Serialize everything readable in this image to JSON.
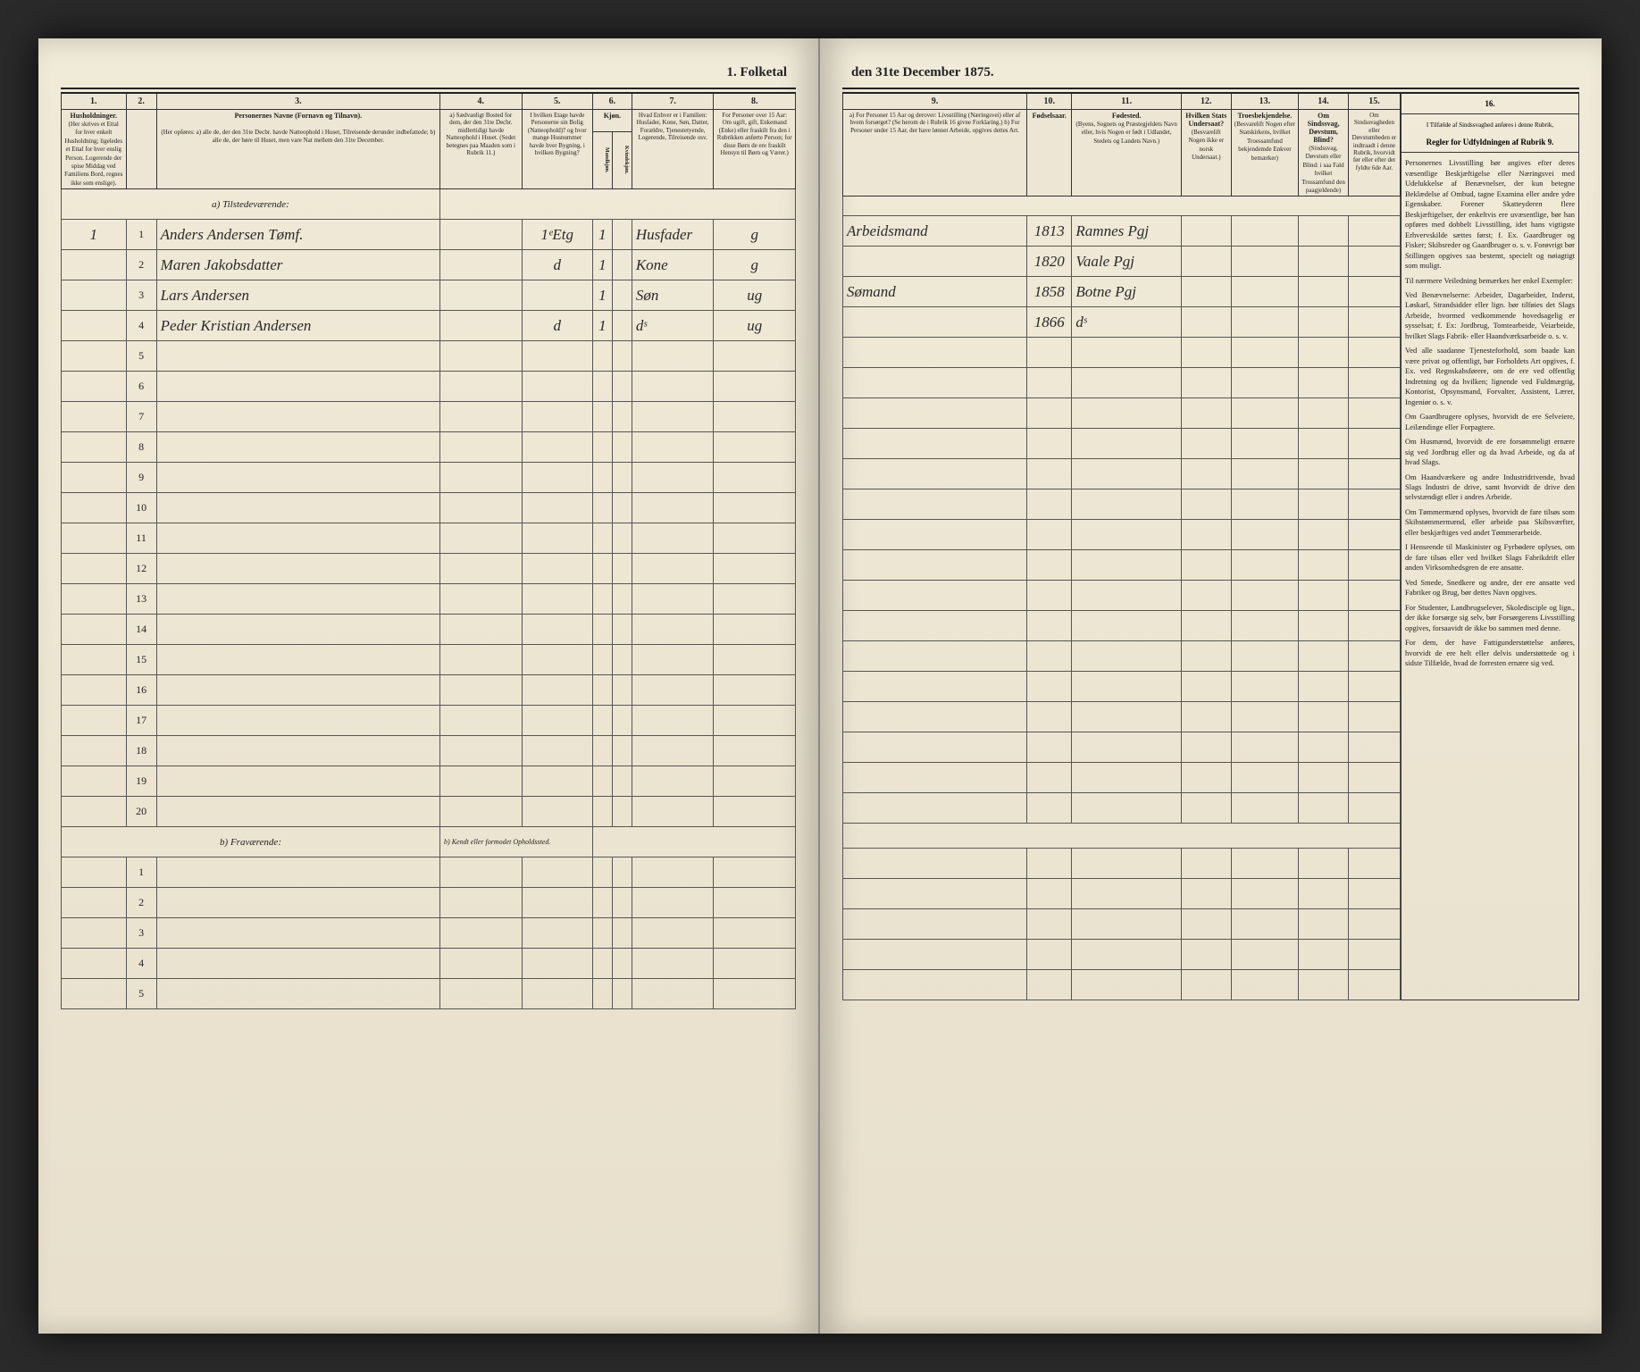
{
  "document": {
    "title_left": "1. Folketal",
    "title_right": "den 31te December 1875.",
    "left_columns": {
      "nums": [
        "1.",
        "2.",
        "3.",
        "4.",
        "5.",
        "6.",
        "7.",
        "8."
      ],
      "h1": "Husholdninger.",
      "h1_desc": "(Her skrives et Ettal for hver enkelt Husholdning; ligeledes et Ettal for hver enslig Person. Logerende der spise Middag ved Familiens Bord, regnes ikke som enslige).",
      "h3": "Personernes Navne (Fornavn og Tilnavn).",
      "h3_desc": "(Her opføres: a) alle de, der den 31te Decbr. havde Natteophold i Huset, Tilreisende derunder indbefattede; b) alle de, der høre til Huset, men vare Nat mellem den 31te December.",
      "h4": "a) Sædvanligt Bosted for dem, der den 31te Decbr. midlertidigt havde Natteophold i Huset. (Sedet betegnes paa Maaden som i Rubrik 11.)",
      "h5": "I hvilken Etage havde Personerne sin Bolig (Natteophold)? og hvor mange Husnummer havde hver Bygning, i hvilken Bygning?",
      "h6": "Kjøn.",
      "h6a": "Mandkjøn.",
      "h6b": "Kvindekjøn.",
      "h7": "Hvad Enhver er i Familien: Husfader, Kone, Søn, Datter, Forældre, Tjenestetyende, Logerende, Tilreisende osv.",
      "h8": "For Personer over 15 Aar: Om ugift, gift, Enkemand (Enke) eller fraskilt fra den i Rubrikken anførte Person; for disse Børn de ere fraskilt Hensyn til Børn og Værer.)"
    },
    "right_columns": {
      "nums": [
        "9.",
        "10.",
        "11.",
        "12.",
        "13.",
        "14.",
        "15.",
        "16."
      ],
      "h9": "a) For Personer 15 Aar og derover: Livsstilling (Næringsvei) eller af hvem forsørget? (Se herom de i Rubrik 16 givne Forklaring.) b) For Personer under 15 Aar, der have lønnet Arbeide, opgives dettes Art.",
      "h10": "Fødselsaar.",
      "h11": "Fødested.",
      "h11_desc": "(Byens, Sognets og Præstegjeldets Navn eller, hvis Nogen er født i Udlandet, Stedets og Landets Navn.)",
      "h12": "Hvilken Stats Undersaat?",
      "h12_desc": "(Besvarelift Nogen ikke er norsk Undersaat.)",
      "h13": "Troesbekjendelse.",
      "h13_desc": "(Besvarelift Nogen efter Statskirkens, hvilket Troessamfund bekjendemde Enkver bemærker)",
      "h14": "Om Sindssvag, Døvstum, Blind?",
      "h14_desc": "(Sindssvag, Døvstum eller Blind: i saa Fald hvilket Trossamfund den paagjeldende)",
      "h15": "Om Sindssvagheden eller Døvstumheden er indtraadt i denne Rubrik, hvorvidt før eller efter det fyldte 6de Aar.",
      "h16": "I Tilfælde af Sindssvaghed anføres i denne Rubrik,",
      "h16_title": "Regler for Udfyldningen af Rubrik 9."
    },
    "section_a": "a) Tilstedeværende:",
    "section_b": "b) Fraværende:",
    "section_b_right": "b) Kendt eller formodet Opholdssted.",
    "rows_a": [
      {
        "n": "1",
        "hh": "1",
        "name": "Anders Andersen Tømf.",
        "c4": "",
        "c5": "1ᵉEtg",
        "c6": "1",
        "c7": "Husfader",
        "c8": "g",
        "c9": "Arbeidsmand",
        "c10": "1813",
        "c11": "Ramnes Pgj",
        "c12": "",
        "c13": "",
        "c14": "",
        "c15": ""
      },
      {
        "n": "2",
        "hh": "",
        "name": "Maren Jakobsdatter",
        "c4": "",
        "c5": "d",
        "c6": "1",
        "c7": "Kone",
        "c8": "g",
        "c9": "",
        "c10": "1820",
        "c11": "Vaale Pgj",
        "c12": "",
        "c13": "",
        "c14": "",
        "c15": ""
      },
      {
        "n": "3",
        "hh": "",
        "name": "Lars Andersen",
        "c4": "",
        "c5": "",
        "c6": "1",
        "c7": "Søn",
        "c8": "ug",
        "c9": "Sømand",
        "c10": "1858",
        "c11": "Botne Pgj",
        "c12": "",
        "c13": "",
        "c14": "",
        "c15": ""
      },
      {
        "n": "4",
        "hh": "",
        "name": "Peder Kristian Andersen",
        "c4": "",
        "c5": "d",
        "c6": "1",
        "c7": "dˢ",
        "c8": "ug",
        "c9": "",
        "c10": "1866",
        "c11": "dˢ",
        "c12": "",
        "c13": "",
        "c14": "",
        "c15": ""
      },
      {
        "n": "5"
      },
      {
        "n": "6"
      },
      {
        "n": "7"
      },
      {
        "n": "8"
      },
      {
        "n": "9"
      },
      {
        "n": "10"
      },
      {
        "n": "11"
      },
      {
        "n": "12"
      },
      {
        "n": "13"
      },
      {
        "n": "14"
      },
      {
        "n": "15"
      },
      {
        "n": "16"
      },
      {
        "n": "17"
      },
      {
        "n": "18"
      },
      {
        "n": "19"
      },
      {
        "n": "20"
      }
    ],
    "rows_b": [
      {
        "n": "1"
      },
      {
        "n": "2"
      },
      {
        "n": "3"
      },
      {
        "n": "4"
      },
      {
        "n": "5"
      }
    ],
    "instructions": [
      "Personernes Livsstilling bør angives efter deres væsentlige Beskjæftigelse eller Næringsvei med Udelukkelse af Benævnelser, der kun betegne Beklædelse af Ombud, tagne Examina eller andre ydre Egenskaber. Forener Skatteyderen flere Beskjæftigelser, der enkeltvis ere uvæsentlige, bør han opføres med dobbelt Livsstilling, idet hans vigtigste Erhvervskilde sættes først; f. Ex. Gaardbruger og Fisker; Skibsreder og Gaardbruger o. s. v. Forøvrigt bør Stillingen opgives saa bestemt, specielt og nøiagtigt som muligt.",
      "Til nærmere Veiledning bemærkes her enkel Exempler:",
      "Ved Benævnelserne: Arbeider, Dagarbeider, Inderst, Løskarl, Strandsidder eller lign. bør tilføies det Slags Arbeide, hvormed vedkommende hovedsagelig er sysselsat; f. Ex: Jordbrug, Tomtearbeide, Veiarbeide, hvilket Slags Fabrik- eller Haandværksarbeide o. s. v.",
      "Ved alle saadanne Tjenesteforhold, som baade kan være privat og offentligt, bør Forholdets Art opgives, f. Ex. ved Regnskabsførere, om de ere ved offentlig Indretning og da hvilken; lignende ved Fuldmægtig, Kontorist, Opsynsmand, Forvalter, Assistent, Lærer, Ingeniør o. s. v.",
      "Om Gaardbrugere oplyses, hvorvidt de ere Selveiere, Leilændinge eller Forpagtere.",
      "Om Husmænd, hvorvidt de ere forsømmeligt ernære sig ved Jordbrug eller og da hvad Arbeide, og da af hvad Slags.",
      "Om Haandværkere og andre Industridrivende, hvad Slags Industri de drive, samt hvorvidt de drive den selvstændigt eller i andres Arbeide.",
      "Om Tømmermænd oplyses, hvorvidt de fare tilsøs som Skibstømmermænd, eller arbeide paa Skibsværfter, eller beskjæftiges ved andet Tømmerarbeide.",
      "I Henseende til Maskinister og Fyrbødere oplyses, om de fare tilsøs eller ved hvilket Slags Fabrikdrift eller anden Virksomhedsgren de ere ansatte.",
      "Ved Smede, Snedkere og andre, der ere ansatte ved Fabriker og Brug, bør dettes Navn opgives.",
      "For Studenter, Landbrugselever, Skoledisciple og lign., der ikke forsørge sig selv, bør Forsørgerens Livsstilling opgives, forsaavidt de ikke bo sammen med denne.",
      "For dem, der have Fattigunderstøttelse anføres, hvorvidt de ere helt eller delvis understøttede og i sidste Tilfælde, hvad de forresten ernære sig ved."
    ]
  },
  "style": {
    "paper_color": "#ede6d4",
    "ink_color": "#222222",
    "handwriting_color": "#2a2a2a",
    "border_color": "#333333"
  }
}
